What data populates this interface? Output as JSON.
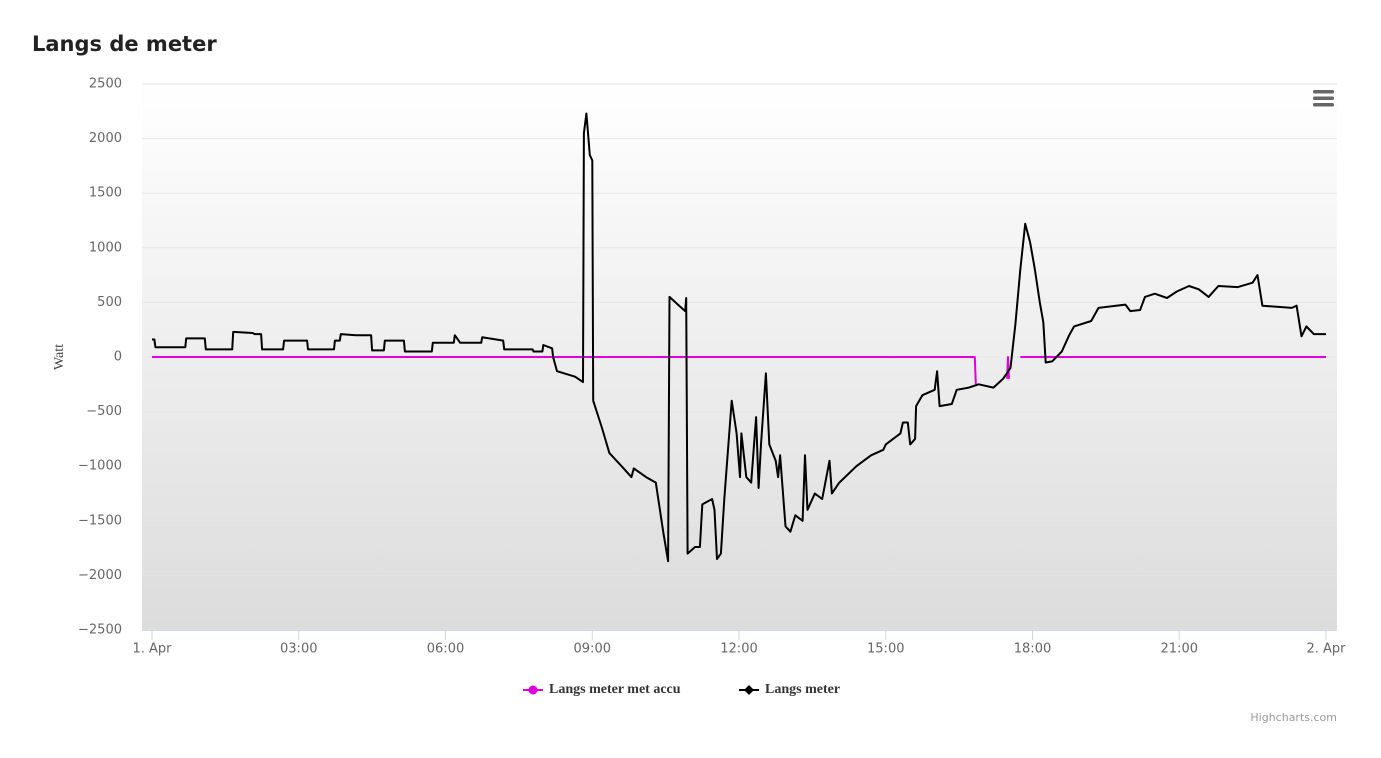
{
  "chart_data": {
    "type": "line",
    "title": "Langs de meter",
    "ylabel": "Watt",
    "credits": "Highcharts.com",
    "xlim": [
      0,
      24
    ],
    "xticks": [
      {
        "value": 0,
        "label": "1. Apr"
      },
      {
        "value": 3,
        "label": "03:00"
      },
      {
        "value": 6,
        "label": "06:00"
      },
      {
        "value": 9,
        "label": "09:00"
      },
      {
        "value": 12,
        "label": "12:00"
      },
      {
        "value": 15,
        "label": "15:00"
      },
      {
        "value": 18,
        "label": "18:00"
      },
      {
        "value": 21,
        "label": "21:00"
      },
      {
        "value": 24,
        "label": "2. Apr"
      }
    ],
    "ylim": [
      -2500,
      2500
    ],
    "yticks": [
      {
        "value": -2500,
        "label": "−2500"
      },
      {
        "value": -2000,
        "label": "−2000"
      },
      {
        "value": -1500,
        "label": "−1500"
      },
      {
        "value": -1000,
        "label": "−1000"
      },
      {
        "value": -500,
        "label": "−500"
      },
      0,
      500,
      1000,
      1500,
      2000,
      2500
    ],
    "grid": true,
    "series": [
      {
        "name": "Langs meter met accu",
        "color": "#e000e0",
        "marker": "circle",
        "x": [
          0,
          16.82,
          16.84,
          17.0,
          17.48,
          17.5,
          17.52,
          17.6,
          17.75,
          24
        ],
        "values": [
          0,
          0,
          -250,
          null,
          -200,
          0,
          -200,
          null,
          0,
          0
        ]
      },
      {
        "name": "Langs meter",
        "color": "#000000",
        "marker": "diamond",
        "x": [
          0,
          0.05,
          0.07,
          0.68,
          0.7,
          1.08,
          1.1,
          1.64,
          1.66,
          2.06,
          2.1,
          2.23,
          2.25,
          2.68,
          2.7,
          3.17,
          3.19,
          3.72,
          3.74,
          3.84,
          3.86,
          4.17,
          4.48,
          4.5,
          4.74,
          4.76,
          5.15,
          5.17,
          5.72,
          5.74,
          6.17,
          6.19,
          6.3,
          6.73,
          6.75,
          7.18,
          7.2,
          7.78,
          7.8,
          7.98,
          8.0,
          8.18,
          8.2,
          8.28,
          8.65,
          8.81,
          8.83,
          8.88,
          8.95,
          9.0,
          9.02,
          9.2,
          9.35,
          9.6,
          9.8,
          9.85,
          10.1,
          10.3,
          10.45,
          10.55,
          10.58,
          10.75,
          10.9,
          10.92,
          10.95,
          11.1,
          11.2,
          11.25,
          11.45,
          11.5,
          11.55,
          11.63,
          11.7,
          11.85,
          11.95,
          12.02,
          12.05,
          12.15,
          12.25,
          12.35,
          12.4,
          12.45,
          12.55,
          12.62,
          12.75,
          12.8,
          12.84,
          12.95,
          13.05,
          13.15,
          13.3,
          13.35,
          13.4,
          13.55,
          13.7,
          13.85,
          13.9,
          14.05,
          14.4,
          14.7,
          14.95,
          15.0,
          15.3,
          15.35,
          15.45,
          15.5,
          15.6,
          15.62,
          15.75,
          16.0,
          16.05,
          16.1,
          16.35,
          16.45,
          16.7,
          16.9,
          17.2,
          17.4,
          17.55,
          17.65,
          17.75,
          17.85,
          17.95,
          18.05,
          18.15,
          18.22,
          18.27,
          18.4,
          18.6,
          18.75,
          18.85,
          19.2,
          19.35,
          19.9,
          20.0,
          20.2,
          20.3,
          20.5,
          20.75,
          20.95,
          21.2,
          21.4,
          21.6,
          21.8,
          22.2,
          22.5,
          22.6,
          22.7,
          23.3,
          23.4,
          23.5,
          23.6,
          23.75,
          24
        ],
        "values": [
          160,
          160,
          90,
          90,
          170,
          170,
          70,
          70,
          230,
          220,
          210,
          210,
          70,
          70,
          150,
          150,
          70,
          70,
          150,
          150,
          210,
          200,
          200,
          60,
          60,
          150,
          150,
          50,
          50,
          130,
          130,
          200,
          130,
          130,
          180,
          150,
          70,
          70,
          50,
          50,
          110,
          80,
          0,
          -130,
          -180,
          -230,
          2050,
          2230,
          1850,
          1800,
          -400,
          -650,
          -880,
          -1000,
          -1100,
          -1020,
          -1100,
          -1150,
          -1600,
          -1870,
          550,
          480,
          420,
          540,
          -1800,
          -1740,
          -1740,
          -1350,
          -1300,
          -1400,
          -1850,
          -1800,
          -1300,
          -400,
          -700,
          -1100,
          -700,
          -1100,
          -1150,
          -550,
          -1200,
          -800,
          -150,
          -800,
          -950,
          -1100,
          -900,
          -1550,
          -1600,
          -1450,
          -1500,
          -900,
          -1400,
          -1250,
          -1300,
          -950,
          -1250,
          -1150,
          -1000,
          -900,
          -850,
          -800,
          -700,
          -600,
          -600,
          -800,
          -750,
          -450,
          -350,
          -300,
          -130,
          -450,
          -430,
          -300,
          -280,
          -250,
          -280,
          -200,
          -100,
          300,
          800,
          1220,
          1050,
          800,
          500,
          320,
          -50,
          -40,
          50,
          200,
          280,
          330,
          450,
          480,
          420,
          430,
          550,
          580,
          540,
          600,
          650,
          620,
          550,
          650,
          640,
          680,
          750,
          470,
          450,
          470,
          190,
          280,
          210,
          210
        ]
      }
    ]
  }
}
